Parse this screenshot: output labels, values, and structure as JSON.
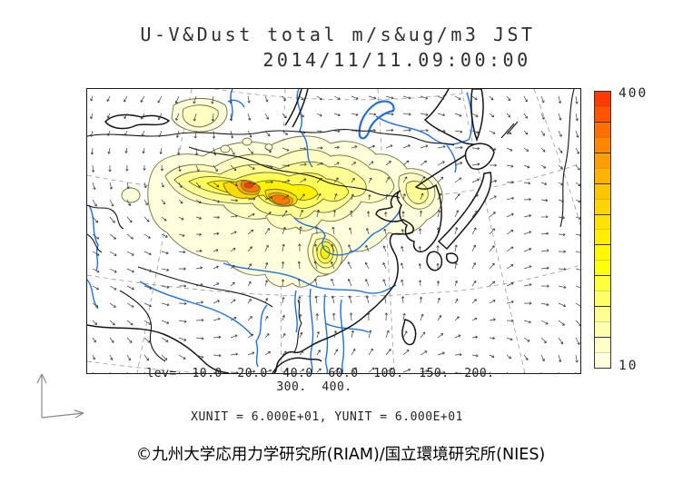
{
  "title": {
    "line1": "U-V&Dust total m/s&ug/m3 JST",
    "line2": "2014/11/11.09:00:00"
  },
  "legend": {
    "line1": "lev=  10.0  20.0  40.0  60.0  100.  150.  200.",
    "line2": "300.  400."
  },
  "units_line": "XUNIT = 6.000E+01, YUNIT = 6.000E+01",
  "credit": "©九州大学応用力学研究所(RIAM)/国立環境研究所(NIES)",
  "colorbar": {
    "max_label": "400",
    "min_label": "10"
  },
  "chart_data": {
    "type": "heatmap",
    "title": "U-V&Dust total m/s&ug/m3 JST",
    "timestamp": "2014/11/11.09:00:00",
    "units": {
      "wind": "m/s",
      "dust": "ug/m3",
      "timezone": "JST"
    },
    "contour_levels": [
      10.0,
      20.0,
      40.0,
      60.0,
      100.0,
      150.0,
      200.0,
      300.0,
      400.0
    ],
    "colorbar": {
      "min": 10,
      "max": 400,
      "orientation": "vertical",
      "position": "right",
      "colors": [
        "#FF3A00",
        "#FF5400",
        "#FF6F00",
        "#FF8700",
        "#FF9E00",
        "#FFB200",
        "#FFC400",
        "#FFD400",
        "#FFE200",
        "#FFEE00",
        "#FFF800",
        "#FFFF0A",
        "#FFFF3D",
        "#FFFF69",
        "#FFFF8F",
        "#FFFFAF",
        "#FFFFC9",
        "#FFFFDE"
      ]
    },
    "level_colors": {
      "lv10": "#FFFFDE",
      "lv20": "#FFFFC4",
      "lv40": "#FFFF96",
      "lv60": "#FFFF5A",
      "lv100": "#FFF200",
      "lv150": "#FFD900",
      "lv200": "#FFB200",
      "lv300": "#FF7A00",
      "lv400": "#FF3C00"
    },
    "vector_scale": {
      "xunit": "6.000E+01",
      "yunit": "6.000E+01"
    },
    "overlays": [
      "wind-vectors",
      "coastlines",
      "rivers",
      "graticule",
      "dust-shading"
    ],
    "legend_position": "bottom"
  }
}
